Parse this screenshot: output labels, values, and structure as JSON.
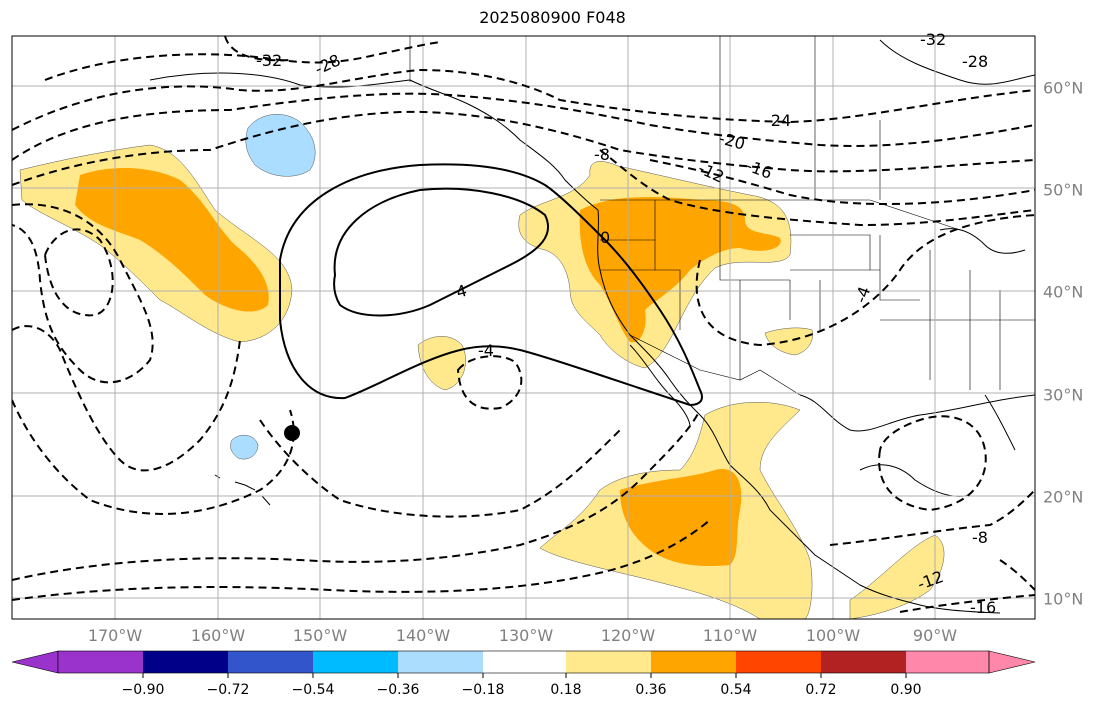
{
  "title": "2025080900 F048",
  "lat_labels": [
    "60°N",
    "50°N",
    "40°N",
    "30°N",
    "20°N",
    "10°N"
  ],
  "lon_labels": [
    "170°W",
    "160°W",
    "150°W",
    "140°W",
    "130°W",
    "120°W",
    "110°W",
    "100°W",
    "90°W"
  ],
  "contour_labels": [
    "-32",
    "-28",
    "-28",
    "-24",
    "-20",
    "-16",
    "-12",
    "-8",
    "0",
    "-4",
    "4",
    "-4",
    "-8",
    "-12",
    "-16",
    "-32"
  ],
  "colorbar": {
    "ticks": [
      "−0.90",
      "−0.72",
      "−0.54",
      "−0.36",
      "−0.18",
      "0.18",
      "0.36",
      "0.54",
      "0.72",
      "0.90"
    ],
    "colors": [
      "#9933cc",
      "#000088",
      "#3355cc",
      "#00bbff",
      "#aaddff",
      "#ffffff",
      "#ffe98c",
      "#ffa500",
      "#ff4500",
      "#b22222",
      "#ff88aa",
      "#ff88aa"
    ]
  },
  "colors": {
    "positive_low": "#ffe98c",
    "positive_mid": "#ffa500",
    "negative_low": "#aaddff",
    "grid": "#b0b0b0"
  },
  "marker": "dot"
}
